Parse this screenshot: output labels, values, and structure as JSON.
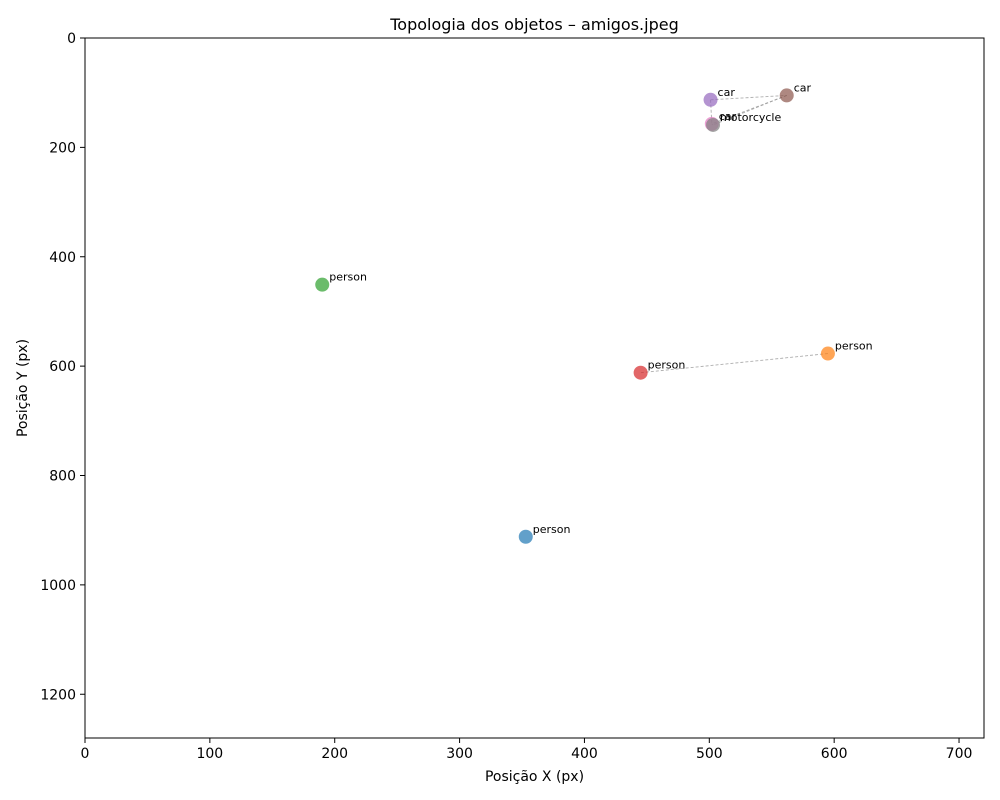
{
  "chart_data": {
    "type": "scatter",
    "title": "Topologia dos objetos – amigos.jpeg",
    "xlabel": "Posição X (px)",
    "ylabel": "Posição Y (px)",
    "xlim": [
      0,
      720
    ],
    "ylim": [
      1280,
      0
    ],
    "y_inverted": true,
    "grid": false,
    "xticks": [
      0,
      100,
      200,
      300,
      400,
      500,
      600,
      700
    ],
    "yticks": [
      0,
      200,
      400,
      600,
      800,
      1000,
      1200
    ],
    "points": [
      {
        "label": "person",
        "x": 353,
        "y": 912,
        "color": "#1f77b4"
      },
      {
        "label": "person",
        "x": 595,
        "y": 577,
        "color": "#ff7f0e"
      },
      {
        "label": "person",
        "x": 190,
        "y": 451,
        "color": "#2ca02c"
      },
      {
        "label": "person",
        "x": 445,
        "y": 612,
        "color": "#d62728"
      },
      {
        "label": "car",
        "x": 501,
        "y": 113,
        "color": "#9467bd"
      },
      {
        "label": "car",
        "x": 562,
        "y": 105,
        "color": "#8c564b"
      },
      {
        "label": "car",
        "x": 502,
        "y": 157,
        "color": "#e377c2"
      },
      {
        "label": "motorcycle",
        "x": 503,
        "y": 159,
        "color": "#7f7f7f"
      }
    ],
    "connections": [
      [
        1,
        3
      ],
      [
        4,
        5
      ],
      [
        4,
        6
      ],
      [
        5,
        6
      ],
      [
        5,
        7
      ],
      [
        6,
        7
      ]
    ]
  }
}
